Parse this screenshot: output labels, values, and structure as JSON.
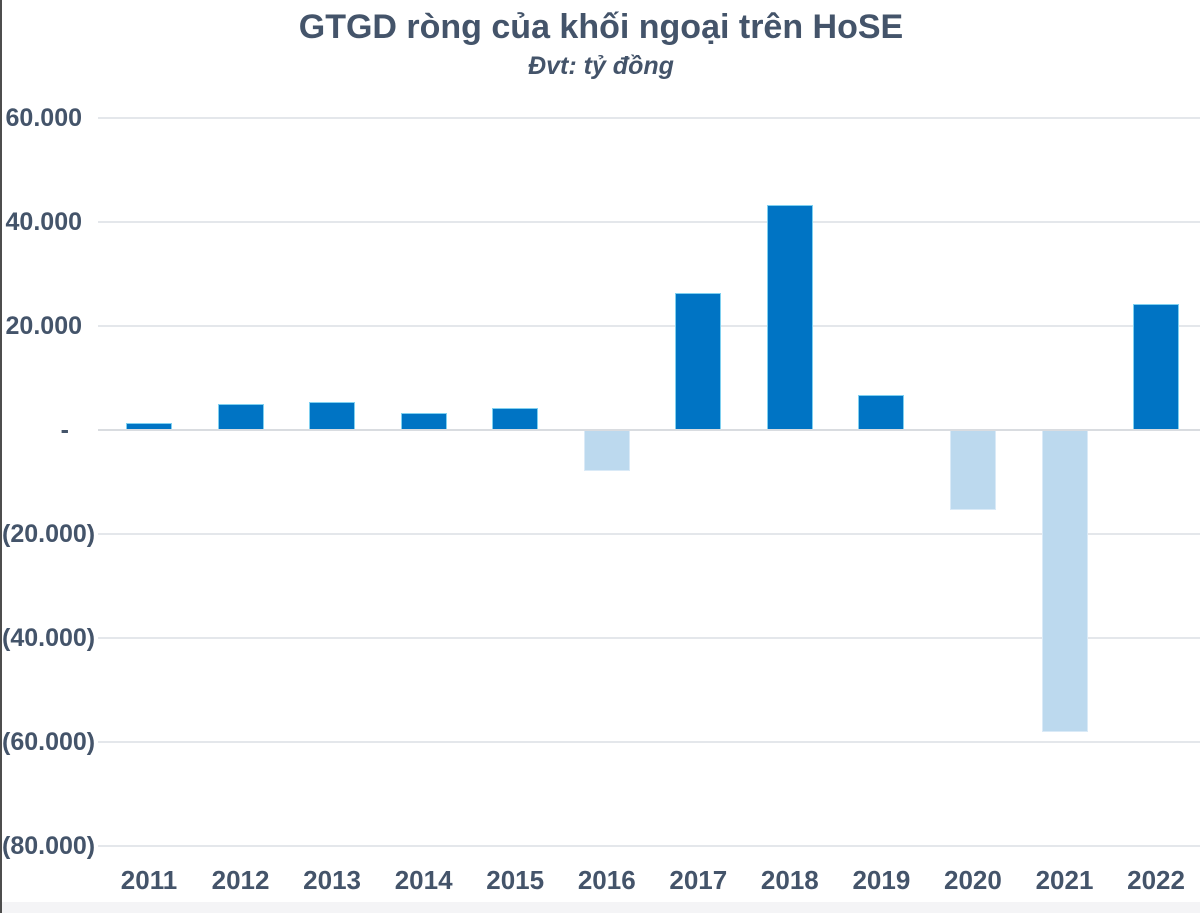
{
  "chart_data": {
    "type": "bar",
    "title": "GTGD ròng của khối ngoại trên HoSE",
    "subtitle": "Đvt: tỷ đồng",
    "unit": "tỷ đồng",
    "categories": [
      "2011",
      "2012",
      "2013",
      "2014",
      "2015",
      "2016",
      "2017",
      "2018",
      "2019",
      "2020",
      "2021",
      "2022"
    ],
    "values": [
      1400,
      4950,
      5330,
      3210,
      4170,
      -7800,
      26400,
      43300,
      6800,
      -15400,
      -58000,
      24300
    ],
    "ylim": [
      -80000,
      60000
    ],
    "ytick_step": 20000,
    "yticks": [
      {
        "value": 60000,
        "label": "60.000"
      },
      {
        "value": 40000,
        "label": "40.000"
      },
      {
        "value": 20000,
        "label": "20.000"
      },
      {
        "value": 0,
        "label": "-"
      },
      {
        "value": -20000,
        "label": "(20.000)"
      },
      {
        "value": -40000,
        "label": "(40.000)"
      },
      {
        "value": -60000,
        "label": "(60.000)"
      },
      {
        "value": -80000,
        "label": "(80.000)"
      }
    ],
    "grid": "horizontal",
    "legend": "none",
    "colors": {
      "positive_bar": "#0074C4",
      "positive_bar_border": "#7FD0F0",
      "negative_bar": "#BCD9EE",
      "negative_bar_border": "#DAEAF7",
      "text": "#44546A",
      "gridline": "#E4E7EB",
      "zero_line": "#D9DCE0"
    }
  }
}
